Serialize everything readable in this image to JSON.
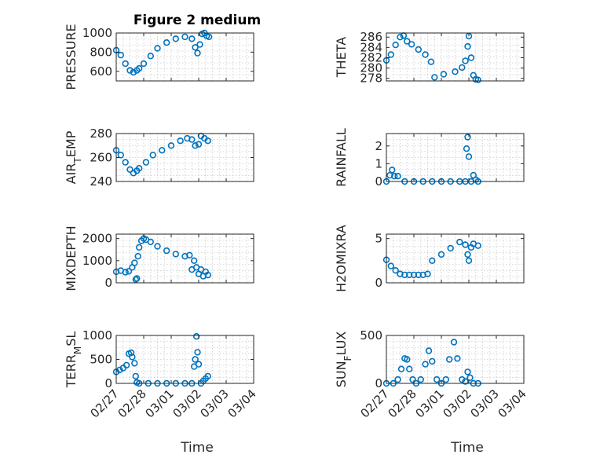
{
  "figure": {
    "title": "Figure 2 medium",
    "xlabel": "Time",
    "date_ticks": [
      "02/27",
      "02/28",
      "03/01",
      "03/02",
      "03/03",
      "03/04"
    ],
    "marker_color": "#0072BD",
    "grid": "minor dotted"
  },
  "chart_data": [
    {
      "type": "scatter",
      "name": "pressure",
      "ylabel": "PRESSURE",
      "ylim": [
        500,
        1000
      ],
      "yticks": [
        600,
        800,
        1000
      ],
      "xlim": [
        0,
        6
      ],
      "x": [
        0.0,
        0.2,
        0.4,
        0.6,
        0.75,
        0.9,
        1.0,
        1.2,
        1.5,
        1.8,
        2.2,
        2.6,
        3.0,
        3.3,
        3.45,
        3.55,
        3.65,
        3.75,
        3.85,
        3.95,
        4.05
      ],
      "y": [
        820,
        770,
        680,
        610,
        590,
        610,
        630,
        680,
        760,
        840,
        900,
        940,
        960,
        940,
        850,
        790,
        880,
        990,
        1000,
        970,
        960
      ]
    },
    {
      "type": "scatter",
      "name": "theta",
      "ylabel": "THETA",
      "ylim": [
        277.5,
        286.8
      ],
      "yticks": [
        278,
        280,
        282,
        284,
        286
      ],
      "xlim": [
        0,
        6
      ],
      "x": [
        0.0,
        0.2,
        0.4,
        0.6,
        0.75,
        0.9,
        1.1,
        1.4,
        1.7,
        1.95,
        2.1,
        2.5,
        3.0,
        3.3,
        3.45,
        3.55,
        3.6,
        3.7,
        3.8,
        3.9,
        4.0
      ],
      "y": [
        281.5,
        282.6,
        284.5,
        286.0,
        286.3,
        285.2,
        284.6,
        283.6,
        282.6,
        281.2,
        278.2,
        278.8,
        279.3,
        280.1,
        281.4,
        284.2,
        286.2,
        282.0,
        278.6,
        277.8,
        277.7
      ]
    },
    {
      "type": "scatter",
      "name": "air_temp",
      "ylabel": "AIR_TEMP",
      "ylim": [
        240,
        280
      ],
      "yticks": [
        240,
        260,
        280
      ],
      "xlim": [
        0,
        6
      ],
      "x": [
        0.0,
        0.2,
        0.4,
        0.6,
        0.75,
        0.9,
        1.0,
        1.3,
        1.6,
        2.0,
        2.4,
        2.8,
        3.1,
        3.3,
        3.45,
        3.6,
        3.7,
        3.85,
        4.0
      ],
      "y": [
        266,
        262,
        256,
        250,
        247,
        249,
        251,
        256,
        262,
        266,
        270,
        274,
        276,
        275,
        270,
        271,
        278,
        276,
        274
      ]
    },
    {
      "type": "scatter",
      "name": "rainfall",
      "ylabel": "RAINFALL",
      "ylim": [
        0,
        2.7
      ],
      "yticks": [
        0,
        1,
        2
      ],
      "xlim": [
        0,
        6
      ],
      "x": [
        0.0,
        0.15,
        0.25,
        0.35,
        0.5,
        0.8,
        1.2,
        1.6,
        2.0,
        2.4,
        2.8,
        3.2,
        3.45,
        3.5,
        3.55,
        3.6,
        3.7,
        3.8,
        3.9,
        4.0
      ],
      "y": [
        0.0,
        0.35,
        0.65,
        0.3,
        0.3,
        0.0,
        0.0,
        0.0,
        0.0,
        0.0,
        0.0,
        0.0,
        0.0,
        1.85,
        2.5,
        1.4,
        0.0,
        0.35,
        0.1,
        0.0
      ]
    },
    {
      "type": "scatter",
      "name": "mixdepth",
      "ylabel": "MIXDEPTH",
      "ylim": [
        0,
        2200
      ],
      "yticks": [
        0,
        1000,
        2000
      ],
      "xlim": [
        0,
        6
      ],
      "x": [
        0.0,
        0.2,
        0.4,
        0.55,
        0.7,
        0.8,
        0.85,
        0.9,
        0.95,
        1.0,
        1.1,
        1.2,
        1.3,
        1.5,
        1.8,
        2.2,
        2.6,
        3.0,
        3.2,
        3.3,
        3.4,
        3.5,
        3.6,
        3.7,
        3.8,
        3.9,
        4.0
      ],
      "y": [
        500,
        550,
        480,
        520,
        700,
        900,
        150,
        200,
        1200,
        1600,
        1900,
        2000,
        1950,
        1850,
        1650,
        1450,
        1300,
        1200,
        1250,
        600,
        1000,
        700,
        400,
        600,
        300,
        500,
        350
      ]
    },
    {
      "type": "scatter",
      "name": "h2omixra",
      "ylabel": "H2OMIXRA",
      "ylim": [
        0,
        5.5
      ],
      "yticks": [
        0,
        5
      ],
      "xlim": [
        0,
        6
      ],
      "x": [
        0.0,
        0.2,
        0.4,
        0.6,
        0.8,
        1.0,
        1.2,
        1.4,
        1.6,
        1.8,
        2.0,
        2.4,
        2.8,
        3.2,
        3.45,
        3.55,
        3.6,
        3.7,
        3.8,
        4.0
      ],
      "y": [
        2.6,
        1.9,
        1.4,
        1.0,
        0.9,
        0.9,
        0.9,
        0.9,
        0.9,
        1.0,
        2.5,
        3.2,
        3.9,
        4.6,
        4.3,
        3.2,
        2.5,
        4.0,
        4.4,
        4.2
      ]
    },
    {
      "type": "scatter",
      "name": "terr_msl",
      "ylabel": "TERR_MSL",
      "ylim": [
        0,
        1000
      ],
      "yticks": [
        0,
        500,
        1000
      ],
      "xlim": [
        0,
        6
      ],
      "x": [
        0.0,
        0.15,
        0.3,
        0.45,
        0.55,
        0.65,
        0.7,
        0.8,
        0.85,
        0.9,
        1.0,
        1.4,
        1.8,
        2.2,
        2.6,
        3.0,
        3.3,
        3.4,
        3.45,
        3.5,
        3.55,
        3.6,
        3.7,
        3.8,
        3.9,
        4.0
      ],
      "y": [
        240,
        280,
        320,
        380,
        620,
        640,
        550,
        420,
        150,
        20,
        0,
        0,
        0,
        0,
        0,
        0,
        0,
        350,
        500,
        980,
        650,
        400,
        0,
        50,
        100,
        150
      ]
    },
    {
      "type": "scatter",
      "name": "sun_flux",
      "ylabel": "SUN_FLUX",
      "ylim": [
        0,
        500
      ],
      "yticks": [
        0,
        500
      ],
      "xlim": [
        0,
        6
      ],
      "x": [
        0.0,
        0.3,
        0.5,
        0.65,
        0.8,
        0.9,
        1.0,
        1.15,
        1.3,
        1.5,
        1.7,
        1.85,
        2.0,
        2.2,
        2.4,
        2.6,
        2.75,
        2.95,
        3.1,
        3.3,
        3.45,
        3.55,
        3.65,
        3.8,
        4.0
      ],
      "y": [
        0,
        0,
        40,
        150,
        260,
        250,
        150,
        40,
        0,
        40,
        200,
        340,
        230,
        40,
        0,
        40,
        250,
        430,
        260,
        40,
        20,
        120,
        60,
        0,
        0
      ]
    }
  ]
}
